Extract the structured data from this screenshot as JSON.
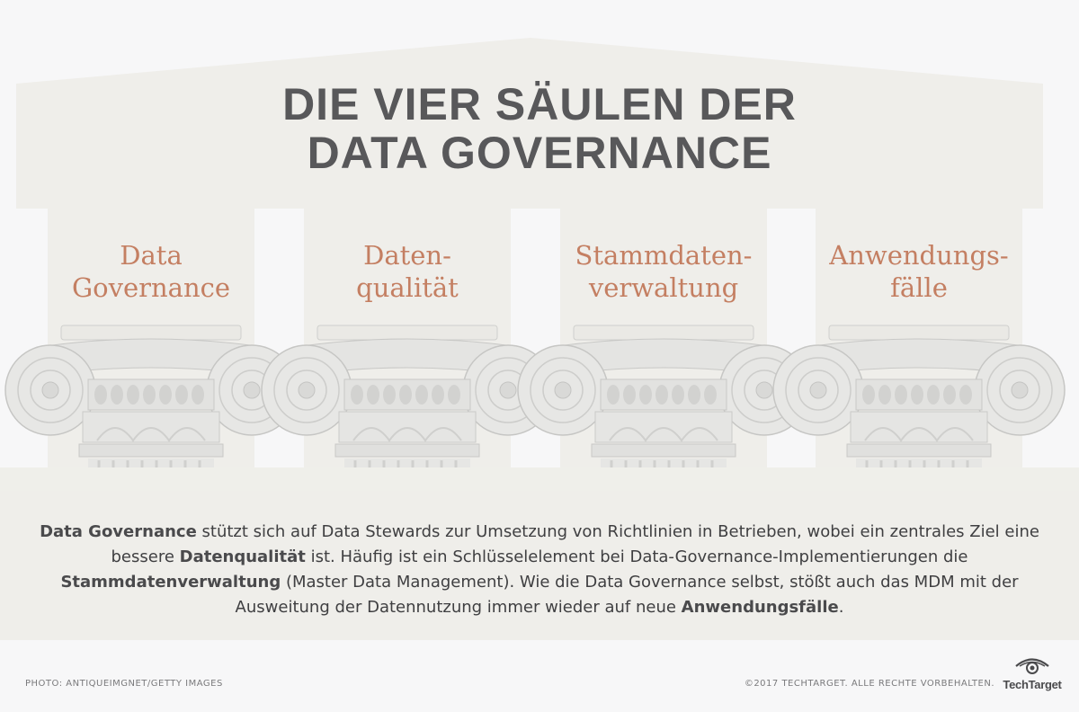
{
  "title": {
    "line1": "DIE VIER SÄULEN DER",
    "line2": "DATA GOVERNANCE"
  },
  "pillars": [
    {
      "line1": "Data",
      "line2": "Governance"
    },
    {
      "line1": "Daten-",
      "line2": "qualität"
    },
    {
      "line1": "Stammdaten-",
      "line2": "verwaltung"
    },
    {
      "line1": "Anwendungs-",
      "line2": "fälle"
    }
  ],
  "description": {
    "s1": "Data Governance",
    "s2": " stützt sich auf Data Stewards zur Umsetzung von Richtlinien in Betrieben, wobei ein zentrales Ziel eine bessere ",
    "s3": "Datenqualität",
    "s4": " ist. Häufig ist ein Schlüsselelement bei Data-Governance-Implementierungen die ",
    "s5": "Stammdatenverwaltung",
    "s6": " (Master Data Management). Wie die Data Governance selbst, stößt auch das MDM mit der Ausweitung der Datennutzung immer wieder auf neue ",
    "s7": "Anwendungsfälle",
    "s8": "."
  },
  "footer": {
    "photo_credit": "PHOTO:  ANTIQUEIMGNET/GETTY IMAGES",
    "copyright": "©2017 TECHTARGET. ALLE RECHTE VORBEHALTEN.",
    "brand": "TechTarget",
    "brand_icon": "eye-logo-icon"
  },
  "colors": {
    "background": "#f7f7f8",
    "temple": "#efeeea",
    "title": "#58585a",
    "pillar_label": "#c47f62",
    "text": "#3f3f41"
  }
}
